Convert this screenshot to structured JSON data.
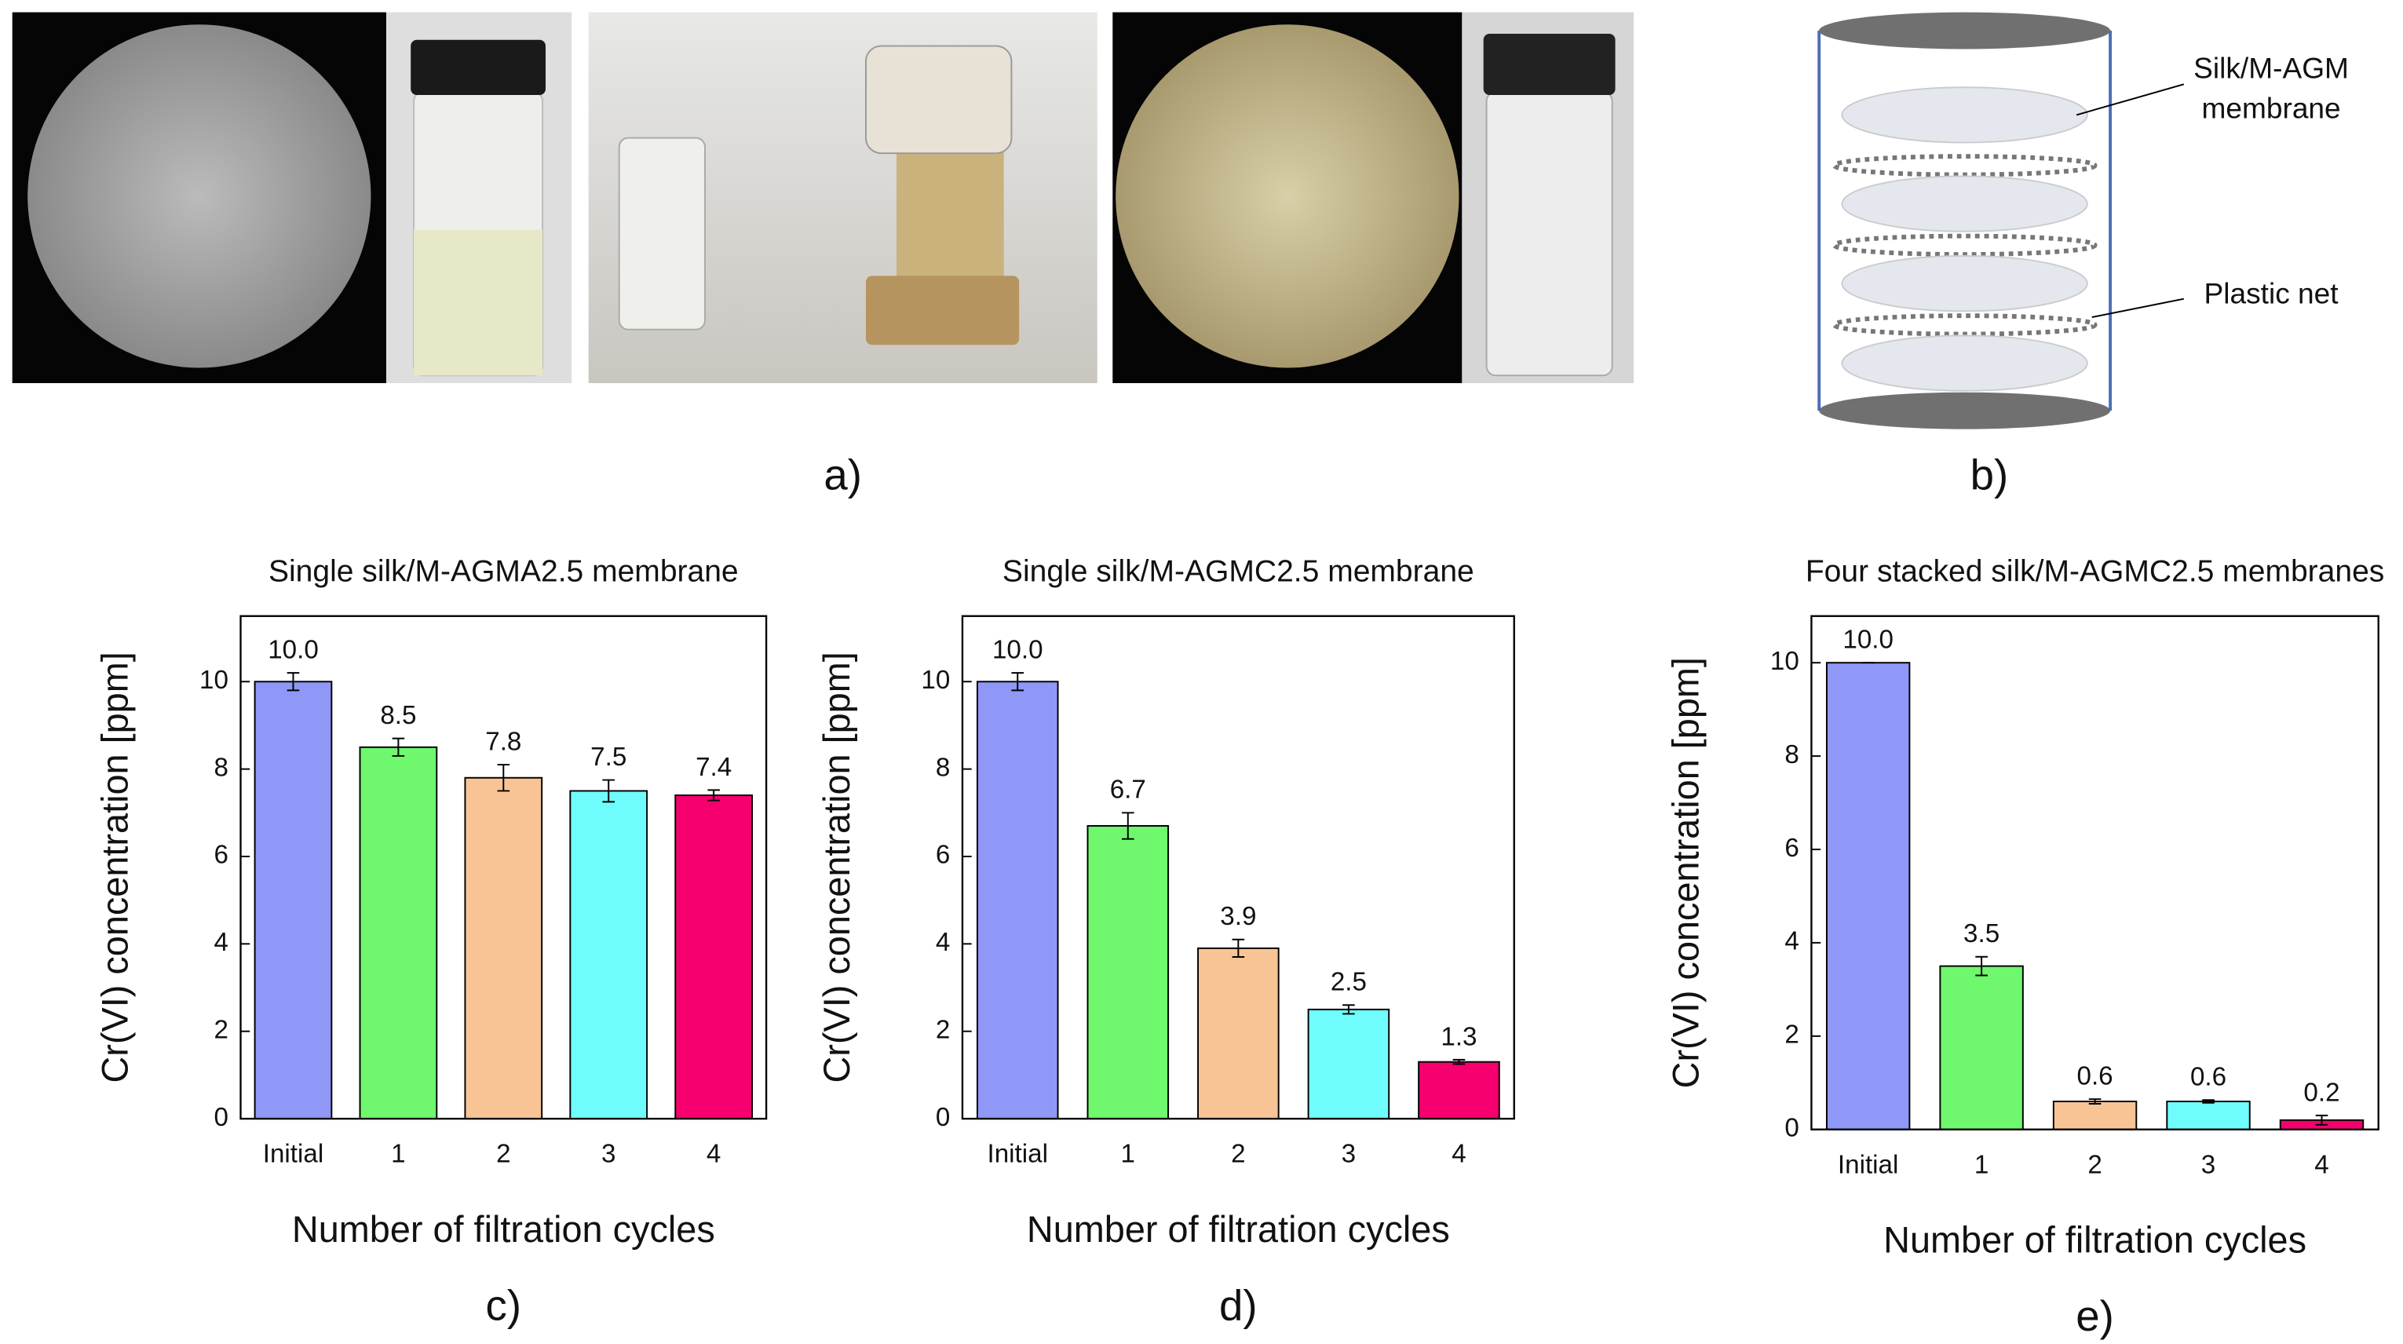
{
  "photo_panel": {
    "label": "a)"
  },
  "diagram": {
    "label": "b)",
    "annotations": [
      "Silk/M-AGM",
      "membrane",
      "Plastic net"
    ]
  },
  "chart_data": [
    {
      "type": "bar",
      "panel_label": "c)",
      "title": "Single silk/M-AGMA2.5 membrane",
      "y_label": "Cr(VI) concentration [ppm]",
      "x_label": "Number of filtration cycles",
      "categories": [
        "Initial",
        "1",
        "2",
        "3",
        "4"
      ],
      "values": [
        10,
        8.5,
        7.8,
        7.5,
        7.4
      ],
      "value_labels": [
        "10.0",
        "8.5",
        "7.8",
        "7.5",
        "7.4"
      ],
      "errors": [
        0.2,
        0.2,
        0.3,
        0.25,
        0.12
      ],
      "colors": [
        "#8f97f7",
        "#6ff76d",
        "#f9c495",
        "#6ffcfc",
        "#f5006e"
      ],
      "ylim": [
        0,
        11.5
      ],
      "yticks": [
        0,
        2,
        4,
        6,
        8,
        10
      ]
    },
    {
      "type": "bar",
      "panel_label": "d)",
      "title": "Single silk/M-AGMC2.5 membrane",
      "y_label": "Cr(VI) concentration [ppm]",
      "x_label": "Number of filtration cycles",
      "categories": [
        "Initial",
        "1",
        "2",
        "3",
        "4"
      ],
      "values": [
        10,
        6.7,
        3.9,
        2.5,
        1.3
      ],
      "value_labels": [
        "10.0",
        "6.7",
        "3.9",
        "2.5",
        "1.3"
      ],
      "errors": [
        0.2,
        0.3,
        0.2,
        0.1,
        0.05
      ],
      "colors": [
        "#8f97f7",
        "#6ff76d",
        "#f9c495",
        "#6ffcfc",
        "#f5006e"
      ],
      "ylim": [
        0,
        11.5
      ],
      "yticks": [
        0,
        2,
        4,
        6,
        8,
        10
      ]
    },
    {
      "type": "bar",
      "panel_label": "e)",
      "title": "Four stacked silk/M-AGMC2.5 membranes",
      "y_label": "Cr(VI) concentration [ppm]",
      "x_label": "Number of filtration cycles",
      "categories": [
        "Initial",
        "1",
        "2",
        "3",
        "4"
      ],
      "values": [
        10,
        3.5,
        0.6,
        0.6,
        0.2
      ],
      "value_labels": [
        "10.0",
        "3.5",
        "0.6",
        "0.6",
        "0.2"
      ],
      "errors": [
        0,
        0.2,
        0.05,
        0.03,
        0.1
      ],
      "colors": [
        "#8f97f7",
        "#6ff76d",
        "#f9c495",
        "#6ffcfc",
        "#f5006e"
      ],
      "ylim": [
        0,
        11
      ],
      "yticks": [
        0,
        2,
        4,
        6,
        8,
        10
      ]
    }
  ]
}
